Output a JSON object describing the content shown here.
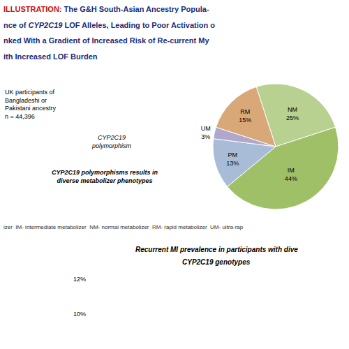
{
  "chart_data": {
    "type": "pie",
    "categories": [
      "NM",
      "IM",
      "PM",
      "UM",
      "RM"
    ],
    "values": [
      25,
      44,
      13,
      3,
      15
    ],
    "value_labels": [
      "NM\n25%",
      "IM\n44%",
      "PM\n13%",
      "UM\n3%",
      "RM\n15%"
    ],
    "colors": [
      "#b8d090",
      "#a0c068",
      "#a8bcd8",
      "#b0a8cc",
      "#d8a878"
    ],
    "data_labels": true,
    "annotations": [
      "ILLUSTRATION:",
      " The G&H South-Asian Ancestry Popula-",
      "nce of ",
      "CYP2C19",
      " LOF Alleles, Leading to Poor Activation o",
      "nked With a Gradient of Increased Risk of Re-current My",
      "ith Increased LOF Burden",
      "UK participants of\nBangladeshi or\nPakistani ancestry\nn = 44,396",
      "CYP2C19\npolymorphism",
      "CYP2C19 polymorphisms results in\ndiverse metabolizer phenotypes",
      "izer  IM- intermediate metabolizer  NM- normal metabolizer  RM- rapid metabolizer  UM- ultra-rap",
      "Recurrent MI prevalence in participants with dive",
      "CYP2C19 genotypes",
      "12%",
      "10%"
    ]
  }
}
